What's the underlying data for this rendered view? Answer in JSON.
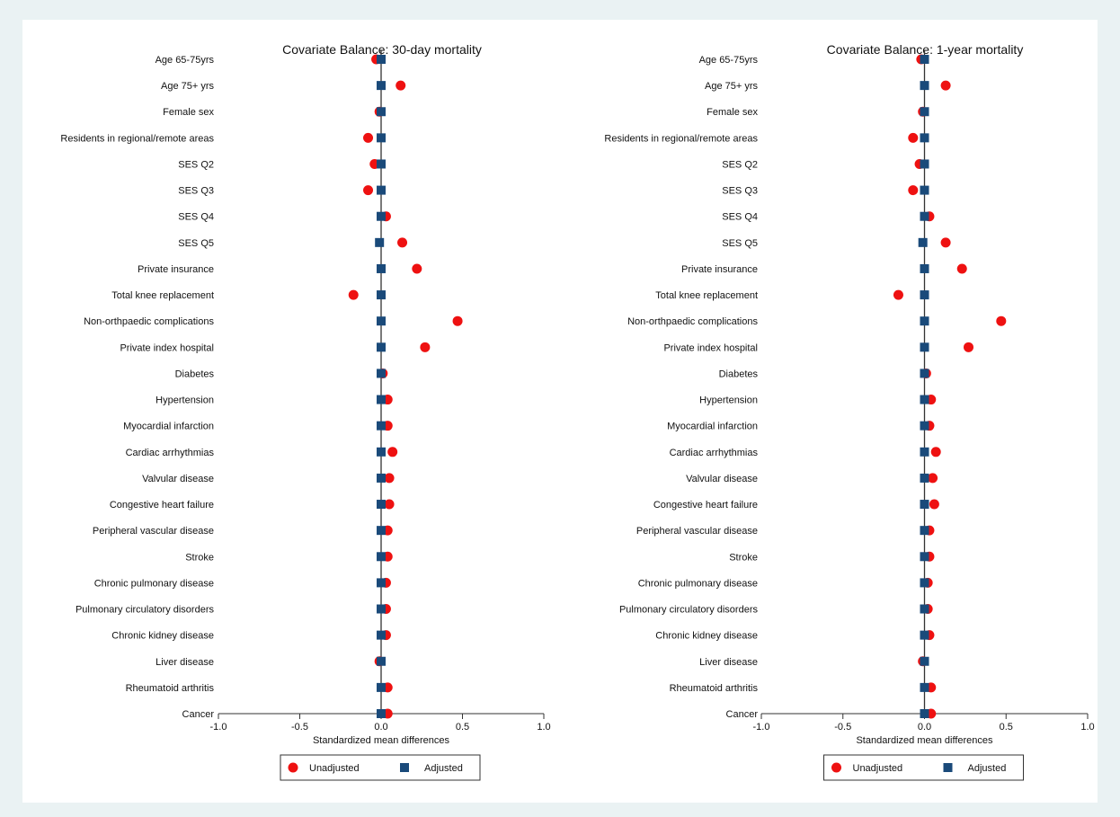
{
  "chart_data": [
    {
      "type": "scatter",
      "title": "Covariate Balance: 30-day mortality",
      "xlabel": "Standardized mean differences",
      "xlim": [
        -1.0,
        1.0
      ],
      "xticks": [
        "-1.0",
        "-0.5",
        "0.0",
        "0.5",
        "1.0"
      ],
      "grid": false,
      "legend_position": "bottom",
      "categories": [
        "Age 65-75yrs",
        "Age 75+ yrs",
        "Female sex",
        "Residents in regional/remote areas",
        "SES Q2",
        "SES Q3",
        "SES Q4",
        "SES Q5",
        "Private insurance",
        "Total knee replacement",
        "Non-orthpaedic complications",
        "Private index hospital",
        "Diabetes",
        "Hypertension",
        "Myocardial infarction",
        "Cardiac arrhythmias",
        "Valvular disease",
        "Congestive heart failure",
        "Peripheral vascular disease",
        "Stroke",
        "Chronic pulmonary disease",
        "Pulmonary circulatory disorders",
        "Chronic kidney disease",
        "Liver disease",
        "Rheumatoid arthritis",
        "Cancer"
      ],
      "series": [
        {
          "name": "Unadjusted",
          "color": "#ee1111",
          "marker": "circle",
          "values": [
            -0.03,
            0.12,
            -0.01,
            -0.08,
            -0.04,
            -0.08,
            0.03,
            0.13,
            0.22,
            -0.17,
            0.47,
            0.27,
            0.01,
            0.04,
            0.04,
            0.07,
            0.05,
            0.05,
            0.04,
            0.04,
            0.03,
            0.03,
            0.03,
            -0.01,
            0.04,
            0.04
          ]
        },
        {
          "name": "Adjusted",
          "color": "#1a4a7a",
          "marker": "square",
          "values": [
            0.0,
            0.0,
            0.0,
            0.0,
            0.0,
            0.0,
            0.0,
            -0.01,
            0.0,
            0.0,
            0.0,
            0.0,
            0.0,
            0.0,
            0.0,
            0.0,
            0.0,
            0.0,
            0.0,
            0.0,
            0.0,
            0.0,
            0.0,
            0.0,
            0.0,
            0.0
          ]
        }
      ]
    },
    {
      "type": "scatter",
      "title": "Covariate Balance: 1-year mortality",
      "xlabel": "Standardized mean differences",
      "xlim": [
        -1.0,
        1.0
      ],
      "xticks": [
        "-1.0",
        "-0.5",
        "0.0",
        "0.5",
        "1.0"
      ],
      "grid": false,
      "legend_position": "bottom",
      "categories": [
        "Age 65-75yrs",
        "Age 75+ yrs",
        "Female sex",
        "Residents in regional/remote areas",
        "SES Q2",
        "SES Q3",
        "SES Q4",
        "SES Q5",
        "Private insurance",
        "Total knee replacement",
        "Non-orthpaedic complications",
        "Private index hospital",
        "Diabetes",
        "Hypertension",
        "Myocardial infarction",
        "Cardiac arrhythmias",
        "Valvular disease",
        "Congestive heart failure",
        "Peripheral vascular disease",
        "Stroke",
        "Chronic pulmonary disease",
        "Pulmonary circulatory disorders",
        "Chronic kidney disease",
        "Liver disease",
        "Rheumatoid arthritis",
        "Cancer"
      ],
      "series": [
        {
          "name": "Unadjusted",
          "color": "#ee1111",
          "marker": "circle",
          "values": [
            -0.02,
            0.13,
            -0.01,
            -0.07,
            -0.03,
            -0.07,
            0.03,
            0.13,
            0.23,
            -0.16,
            0.47,
            0.27,
            0.01,
            0.04,
            0.03,
            0.07,
            0.05,
            0.06,
            0.03,
            0.03,
            0.02,
            0.02,
            0.03,
            -0.01,
            0.04,
            0.04
          ]
        },
        {
          "name": "Adjusted",
          "color": "#1a4a7a",
          "marker": "square",
          "values": [
            0.0,
            0.0,
            0.0,
            0.0,
            0.0,
            0.0,
            0.0,
            -0.01,
            0.0,
            0.0,
            0.0,
            0.0,
            0.0,
            0.0,
            0.0,
            0.0,
            0.0,
            0.0,
            0.0,
            0.0,
            0.0,
            0.0,
            0.0,
            0.0,
            0.0,
            0.0
          ]
        }
      ]
    }
  ]
}
